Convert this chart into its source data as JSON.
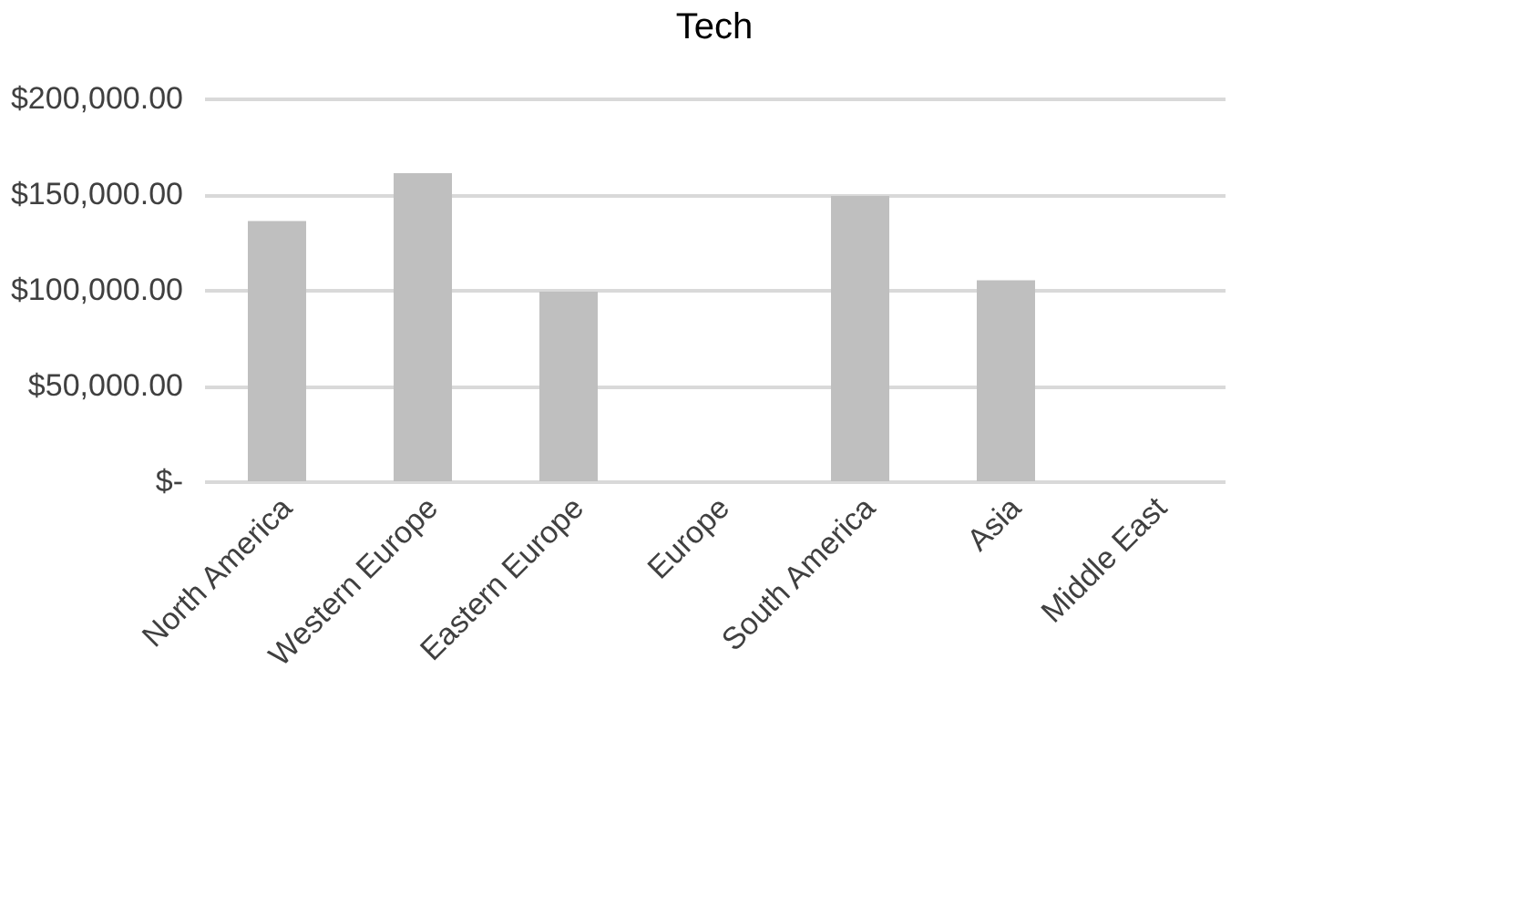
{
  "chart_data": {
    "type": "bar",
    "title": "Tech",
    "categories": [
      "North America",
      "Western Europe",
      "Eastern Europe",
      "Europe",
      "South America",
      "Asia",
      "Middle East"
    ],
    "values": [
      136000,
      161000,
      99000,
      null,
      149000,
      105000,
      null
    ],
    "color": "#bfbfbf",
    "ylim": [
      0,
      200000
    ],
    "yticks": [
      {
        "value": 0,
        "label": "$-"
      },
      {
        "value": 50000,
        "label": "$50,000.00"
      },
      {
        "value": 100000,
        "label": "$100,000.00"
      },
      {
        "value": 150000,
        "label": "$150,000.00"
      },
      {
        "value": 200000,
        "label": "$200,000.00"
      }
    ],
    "grid": "y"
  }
}
